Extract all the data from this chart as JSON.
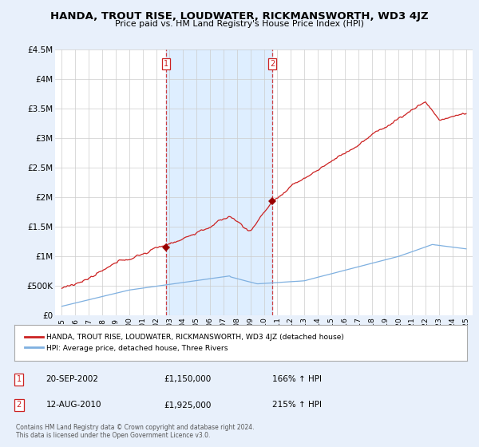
{
  "title": "HANDA, TROUT RISE, LOUDWATER, RICKMANSWORTH, WD3 4JZ",
  "subtitle": "Price paid vs. HM Land Registry's House Price Index (HPI)",
  "bg_color": "#e8f0fb",
  "plot_bg_color": "#ffffff",
  "shade_color": "#ddeeff",
  "sale1_date": "20-SEP-2002",
  "sale1_price": 1150000,
  "sale1_label": "166% ↑ HPI",
  "sale1_x": 2002.72,
  "sale2_date": "12-AUG-2010",
  "sale2_price": 1925000,
  "sale2_label": "215% ↑ HPI",
  "sale2_x": 2010.62,
  "legend_house": "HANDA, TROUT RISE, LOUDWATER, RICKMANSWORTH, WD3 4JZ (detached house)",
  "legend_hpi": "HPI: Average price, detached house, Three Rivers",
  "footer": "Contains HM Land Registry data © Crown copyright and database right 2024.\nThis data is licensed under the Open Government Licence v3.0.",
  "ylim": [
    0,
    4500000
  ],
  "xlim_start": 1994.5,
  "xlim_end": 2025.5
}
